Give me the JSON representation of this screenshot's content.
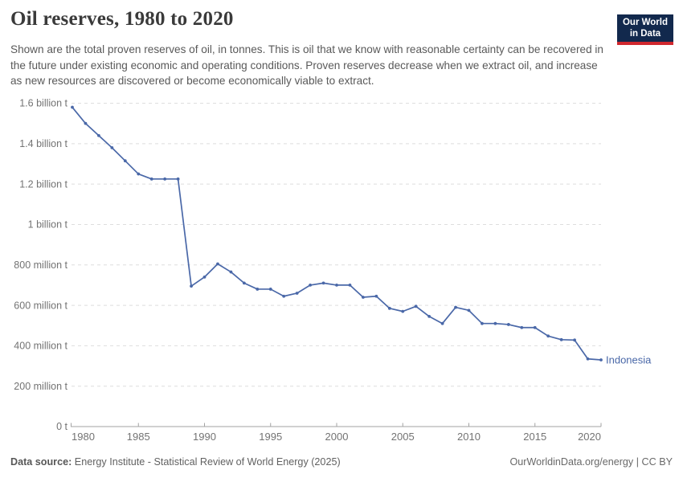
{
  "header": {
    "title": "Oil reserves, 1980 to 2020",
    "subtitle": "Shown are the total proven reserves of oil, in tonnes. This is oil that we know with reasonable certainty can be recovered in the future under existing economic and operating conditions. Proven reserves decrease when we extract oil, and increase as new resources are discovered or become economically viable to extract.",
    "logo": {
      "line1": "Our World",
      "line2": "in Data"
    }
  },
  "chart_data": {
    "type": "line",
    "title": "Oil reserves, 1980 to 2020",
    "unit": "tonnes",
    "grid": "horizontal-dashed",
    "xlim": [
      1980,
      2020
    ],
    "ylim": [
      0,
      1600
    ],
    "x_ticks": [
      1980,
      1985,
      1990,
      1995,
      2000,
      2005,
      2010,
      2015,
      2020
    ],
    "y_ticks": [
      {
        "value": 1600,
        "label": "1.6 billion t"
      },
      {
        "value": 1400,
        "label": "1.4 billion t"
      },
      {
        "value": 1200,
        "label": "1.2 billion t"
      },
      {
        "value": 1000,
        "label": "1 billion t"
      },
      {
        "value": 800,
        "label": "800 million t"
      },
      {
        "value": 600,
        "label": "600 million t"
      },
      {
        "value": 400,
        "label": "400 million t"
      },
      {
        "value": 200,
        "label": "200 million t"
      },
      {
        "value": 0,
        "label": "0 t"
      }
    ],
    "series": [
      {
        "name": "Indonesia",
        "color": "#4a68a8",
        "unit_note": "million tonnes",
        "x": [
          1980,
          1981,
          1982,
          1983,
          1984,
          1985,
          1986,
          1987,
          1988,
          1989,
          1990,
          1991,
          1992,
          1993,
          1994,
          1995,
          1996,
          1997,
          1998,
          1999,
          2000,
          2001,
          2002,
          2003,
          2004,
          2005,
          2006,
          2007,
          2008,
          2009,
          2010,
          2011,
          2012,
          2013,
          2014,
          2015,
          2016,
          2017,
          2018,
          2019,
          2020
        ],
        "values": [
          1580,
          1500,
          1440,
          1380,
          1315,
          1250,
          1225,
          1225,
          1225,
          695,
          740,
          805,
          765,
          710,
          680,
          680,
          645,
          660,
          700,
          710,
          700,
          700,
          640,
          645,
          585,
          570,
          595,
          545,
          510,
          590,
          575,
          510,
          510,
          505,
          490,
          490,
          448,
          430,
          428,
          335,
          330
        ]
      }
    ],
    "legend_position": "end-of-line-label"
  },
  "footer": {
    "source_label": "Data source:",
    "source_text": " Energy Institute - Statistical Review of World Energy (2025)",
    "rights": "OurWorldinData.org/energy | CC BY"
  },
  "colors": {
    "series_blue": "#4a68a8",
    "logo_navy": "#12294d",
    "logo_red": "#d0282e",
    "gridline": "#dedede",
    "axis": "#a3a3a3",
    "axis_text": "#737373"
  }
}
